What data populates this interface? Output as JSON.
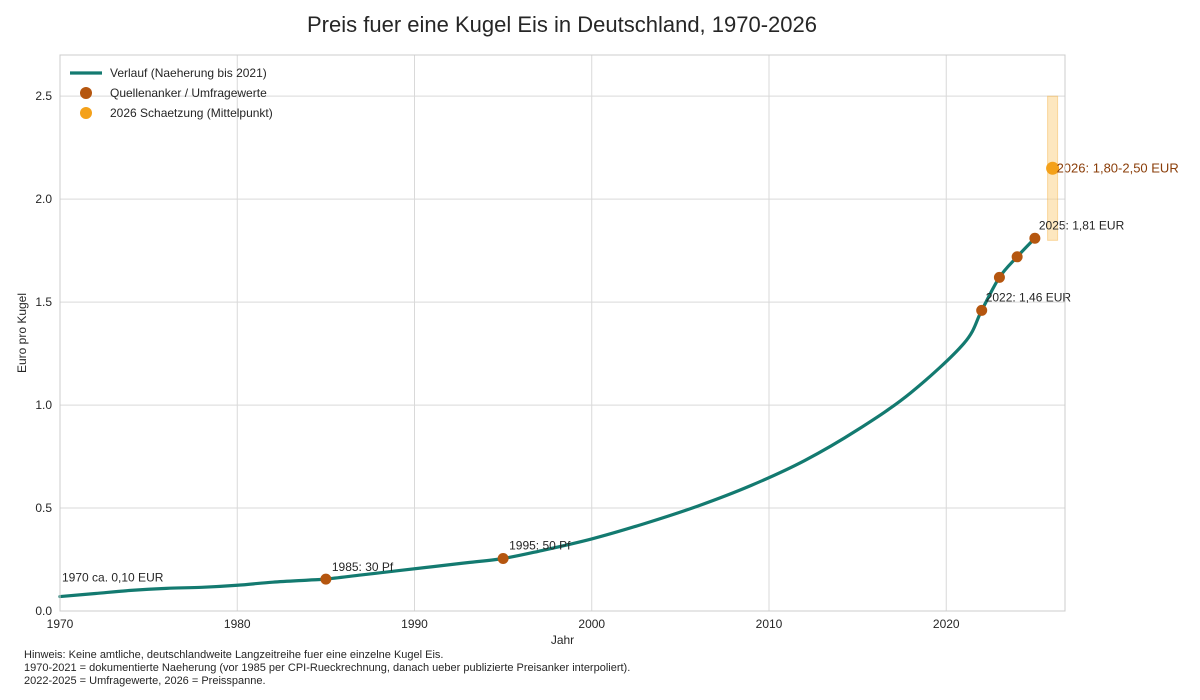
{
  "chart_data": {
    "type": "line",
    "title": "Preis fuer eine Kugel Eis in Deutschland, 1970-2026",
    "xlabel": "Jahr",
    "ylabel": "Euro pro Kugel",
    "xlim": [
      1970,
      2026.7
    ],
    "ylim": [
      0,
      2.7
    ],
    "x_ticks": [
      "1970",
      "1980",
      "1990",
      "2000",
      "2010",
      "2020"
    ],
    "y_ticks": [
      "0.0",
      "0.5",
      "1.0",
      "1.5",
      "2.0",
      "2.5"
    ],
    "grid": true,
    "legend_position": "top-left",
    "series": [
      {
        "name": "Verlauf (Naeherung bis 2021)",
        "style": "line",
        "color": "#137a70",
        "x": [
          1970,
          1972,
          1974,
          1976,
          1978,
          1980,
          1982,
          1984,
          1985,
          1987,
          1989,
          1991,
          1993,
          1995,
          1997,
          2000,
          2003,
          2006,
          2009,
          2012,
          2015,
          2018,
          2021,
          2022,
          2023,
          2024,
          2025
        ],
        "y": [
          0.07,
          0.085,
          0.1,
          0.11,
          0.115,
          0.125,
          0.14,
          0.15,
          0.155,
          0.175,
          0.195,
          0.215,
          0.235,
          0.255,
          0.29,
          0.35,
          0.425,
          0.51,
          0.61,
          0.73,
          0.88,
          1.06,
          1.3,
          1.46,
          1.62,
          1.72,
          1.81
        ]
      },
      {
        "name": "Quellenanker / Umfragewerte",
        "style": "scatter",
        "color": "#b5560f",
        "x": [
          1985,
          1995,
          2022,
          2023,
          2024,
          2025
        ],
        "y": [
          0.155,
          0.255,
          1.46,
          1.62,
          1.72,
          1.81
        ]
      },
      {
        "name": "2026 Schaetzung (Mittelpunkt)",
        "style": "scatter",
        "color": "#f4a11a",
        "x": [
          2026
        ],
        "y": [
          2.15
        ],
        "range": [
          1.8,
          2.5
        ]
      }
    ],
    "annotations": [
      {
        "text": "1970 ca. 0,10 EUR",
        "x": 1970,
        "y": 0.1,
        "color": "#262626"
      },
      {
        "text": "1985: 30 Pf",
        "x": 1985,
        "y": 0.155,
        "color": "#262626"
      },
      {
        "text": "1995: 50 Pf",
        "x": 1995,
        "y": 0.255,
        "color": "#262626"
      },
      {
        "text": "2022: 1,46 EUR",
        "x": 2022,
        "y": 1.46,
        "color": "#262626"
      },
      {
        "text": "2025: 1,81 EUR",
        "x": 2025,
        "y": 1.81,
        "color": "#262626"
      },
      {
        "text": "2026: 1,80-2,50 EUR",
        "x": 2026,
        "y": 2.15,
        "color": "#8a3d08"
      }
    ]
  },
  "footer": {
    "line1": "Hinweis: Keine amtliche, deutschlandweite Langzeitreihe fuer eine einzelne Kugel Eis.",
    "line2": "1970-2021 = dokumentierte Naeherung (vor 1985 per CPI-Rueckrechnung, danach ueber publizierte Preisanker interpoliert).",
    "line3": "2022-2025 = Umfragewerte, 2026 = Preisspanne."
  }
}
